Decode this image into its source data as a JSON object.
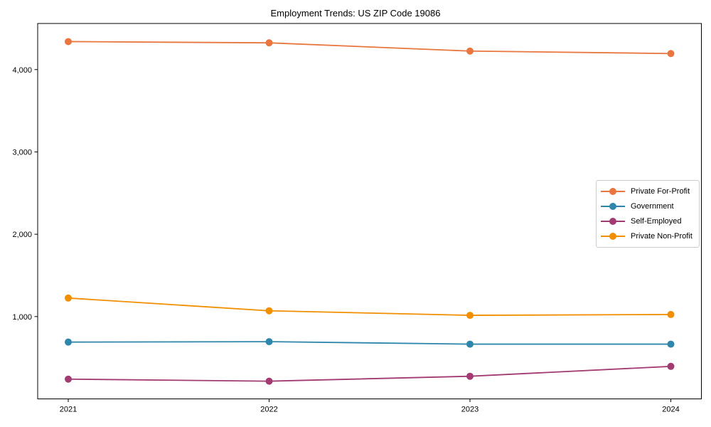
{
  "chart_data": {
    "type": "line",
    "title": "Employment Trends: US ZIP Code 19086",
    "x_labels": [
      "2021",
      "2022",
      "2023",
      "2024"
    ],
    "x": [
      2021,
      2022,
      2023,
      2024
    ],
    "series": [
      {
        "name": "Private For-Profit",
        "color": "#e8763e",
        "values": [
          4340,
          4325,
          4225,
          4195
        ]
      },
      {
        "name": "Government",
        "color": "#2e86ab",
        "values": [
          690,
          695,
          665,
          665
        ]
      },
      {
        "name": "Self-Employed",
        "color": "#a23b72",
        "values": [
          240,
          215,
          275,
          395
        ]
      },
      {
        "name": "Private Non-Profit",
        "color": "#f18f01",
        "values": [
          1225,
          1070,
          1015,
          1025
        ]
      }
    ],
    "yticks": [
      {
        "value": 1000,
        "label": "1,000"
      },
      {
        "value": 2000,
        "label": "2,000"
      },
      {
        "value": 3000,
        "label": "3,000"
      },
      {
        "value": 4000,
        "label": "4,000"
      }
    ],
    "ylim": [
      0,
      4560
    ],
    "grid": false,
    "legend_position": "center right",
    "axis_color": "#000000",
    "tick_font_size": 11
  }
}
